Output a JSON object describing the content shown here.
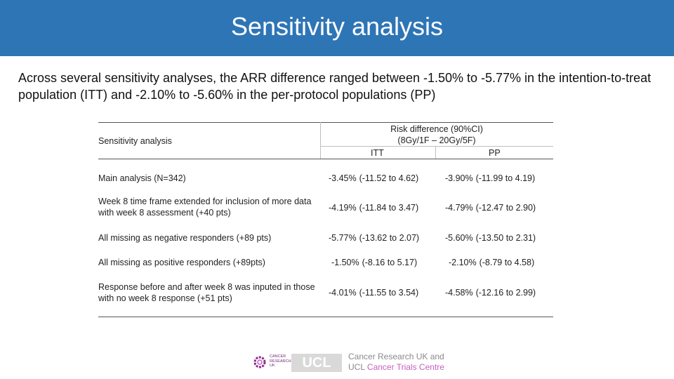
{
  "header": {
    "title": "Sensitivity analysis",
    "bg_color": "#2e75b6"
  },
  "intro": {
    "text": "Across several sensitivity analyses, the ARR difference ranged between -1.50% to -5.77% in the intention-to-treat population (ITT) and -2.10% to -5.60% in the per-protocol populations (PP)"
  },
  "table": {
    "col_header": "Sensitivity analysis",
    "group_header_line1": "Risk difference (90%CI)",
    "group_header_line2": "(8Gy/1F – 20Gy/5F)",
    "sub_itt": "ITT",
    "sub_pp": "PP",
    "rows": [
      {
        "label": "Main analysis (N=342)",
        "itt_est": "-3.45%",
        "itt_ci": "(-11.52 to 4.62)",
        "pp_est": "-3.90%",
        "pp_ci": "(-11.99 to 4.19)"
      },
      {
        "label": "Week 8 time frame extended for inclusion of more data with week 8 assessment (+40 pts)",
        "itt_est": "-4.19%",
        "itt_ci": "(-11.84 to 3.47)",
        "pp_est": "-4.79%",
        "pp_ci": "(-12.47 to 2.90)"
      },
      {
        "label": "All missing as negative responders (+89 pts)",
        "itt_est": "-5.77%",
        "itt_ci": "(-13.62 to 2.07)",
        "pp_est": "-5.60%",
        "pp_ci": "(-13.50 to 2.31)"
      },
      {
        "label": "All missing as positive responders (+89pts)",
        "itt_est": "-1.50%",
        "itt_ci": "(-8.16 to 5.17)",
        "pp_est": "-2.10%",
        "pp_ci": "(-8.79 to 4.58)"
      },
      {
        "label": "Response before and after week 8 was inputed in those with no week 8 response (+51 pts)",
        "itt_est": "-4.01%",
        "itt_ci": "(-11.55 to 3.54)",
        "pp_est": "-4.58%",
        "pp_ci": "(-12.16 to 2.99)"
      }
    ]
  },
  "logos": {
    "logo1_text": "Cancer Research UK",
    "ucl": "UCL",
    "cr_line1": "Cancer Research UK and",
    "cr_line2a": "UCL ",
    "cr_line2b": "Cancer Trials Centre",
    "accent_color": "#c65fbf"
  }
}
